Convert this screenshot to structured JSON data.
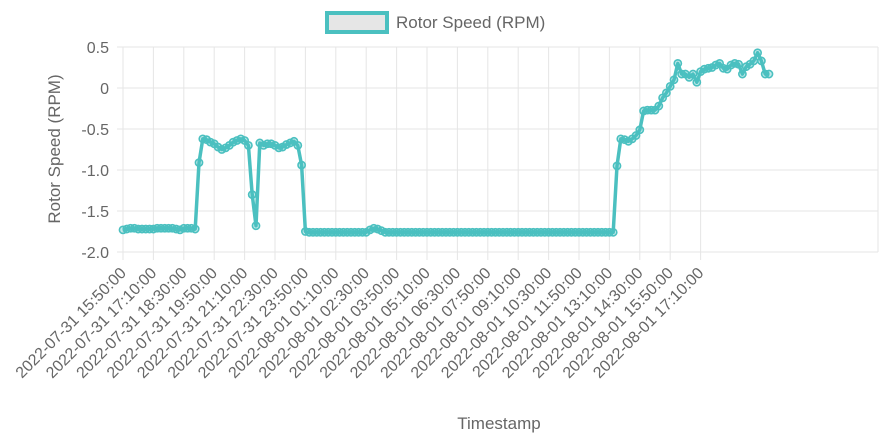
{
  "chart_data": {
    "type": "line",
    "title": "",
    "xlabel": "Timestamp",
    "ylabel": "Rotor Speed (RPM)",
    "ylim": [
      -2.0,
      0.5
    ],
    "y_ticks": [
      "0.5",
      "0",
      "-0.5",
      "-1.0",
      "-1.5",
      "-2.0"
    ],
    "x_tick_labels": [
      "2022-07-31 15:50:00",
      "2022-07-31 17:10:00",
      "2022-07-31 18:30:00",
      "2022-07-31 19:50:00",
      "2022-07-31 21:10:00",
      "2022-07-31 22:30:00",
      "2022-07-31 23:50:00",
      "2022-08-01 01:10:00",
      "2022-08-01 02:30:00",
      "2022-08-01 03:50:00",
      "2022-08-01 05:10:00",
      "2022-08-01 06:30:00",
      "2022-08-01 07:50:00",
      "2022-08-01 09:10:00",
      "2022-08-01 10:30:00",
      "2022-08-01 11:50:00",
      "2022-08-01 13:10:00",
      "2022-08-01 14:30:00",
      "2022-08-01 15:50:00",
      "2022-08-01 17:10:00"
    ],
    "grid": true,
    "legend_position": "top-center",
    "colors": {
      "line": "#4bc0c0",
      "grid": "#e5e5e5",
      "text": "#666666"
    },
    "series": [
      {
        "name": "Rotor Speed (RPM)",
        "values": [
          -1.73,
          -1.72,
          -1.71,
          -1.71,
          -1.72,
          -1.72,
          -1.72,
          -1.72,
          -1.72,
          -1.71,
          -1.71,
          -1.71,
          -1.71,
          -1.71,
          -1.72,
          -1.73,
          -1.71,
          -1.71,
          -1.71,
          -1.72,
          -0.91,
          -0.62,
          -0.63,
          -0.66,
          -0.68,
          -0.72,
          -0.75,
          -0.73,
          -0.7,
          -0.66,
          -0.64,
          -0.62,
          -0.64,
          -0.7,
          -1.3,
          -1.68,
          -0.67,
          -0.7,
          -0.68,
          -0.68,
          -0.7,
          -0.73,
          -0.72,
          -0.69,
          -0.67,
          -0.65,
          -0.7,
          -0.94,
          -1.75,
          -1.76,
          -1.76,
          -1.76,
          -1.76,
          -1.76,
          -1.76,
          -1.76,
          -1.76,
          -1.76,
          -1.76,
          -1.76,
          -1.76,
          -1.76,
          -1.76,
          -1.76,
          -1.76,
          -1.73,
          -1.71,
          -1.72,
          -1.74,
          -1.76,
          -1.76,
          -1.76,
          -1.76,
          -1.76,
          -1.76,
          -1.76,
          -1.76,
          -1.76,
          -1.76,
          -1.76,
          -1.76,
          -1.76,
          -1.76,
          -1.76,
          -1.76,
          -1.76,
          -1.76,
          -1.76,
          -1.76,
          -1.76,
          -1.76,
          -1.76,
          -1.76,
          -1.76,
          -1.76,
          -1.76,
          -1.76,
          -1.76,
          -1.76,
          -1.76,
          -1.76,
          -1.76,
          -1.76,
          -1.76,
          -1.76,
          -1.76,
          -1.76,
          -1.76,
          -1.76,
          -1.76,
          -1.76,
          -1.76,
          -1.76,
          -1.76,
          -1.76,
          -1.76,
          -1.76,
          -1.76,
          -1.76,
          -1.76,
          -1.76,
          -1.76,
          -1.76,
          -1.76,
          -1.76,
          -1.76,
          -1.76,
          -1.76,
          -1.76,
          -1.76,
          -0.95,
          -0.62,
          -0.63,
          -0.65,
          -0.62,
          -0.58,
          -0.51,
          -0.28,
          -0.27,
          -0.27,
          -0.27,
          -0.22,
          -0.12,
          -0.06,
          0.02,
          0.1,
          0.3,
          0.17,
          0.17,
          0.13,
          0.17,
          0.07,
          0.2,
          0.23,
          0.24,
          0.25,
          0.28,
          0.3,
          0.24,
          0.23,
          0.28,
          0.3,
          0.29,
          0.17,
          0.26,
          0.29,
          0.33,
          0.43,
          0.33,
          0.17,
          0.17
        ]
      }
    ]
  }
}
